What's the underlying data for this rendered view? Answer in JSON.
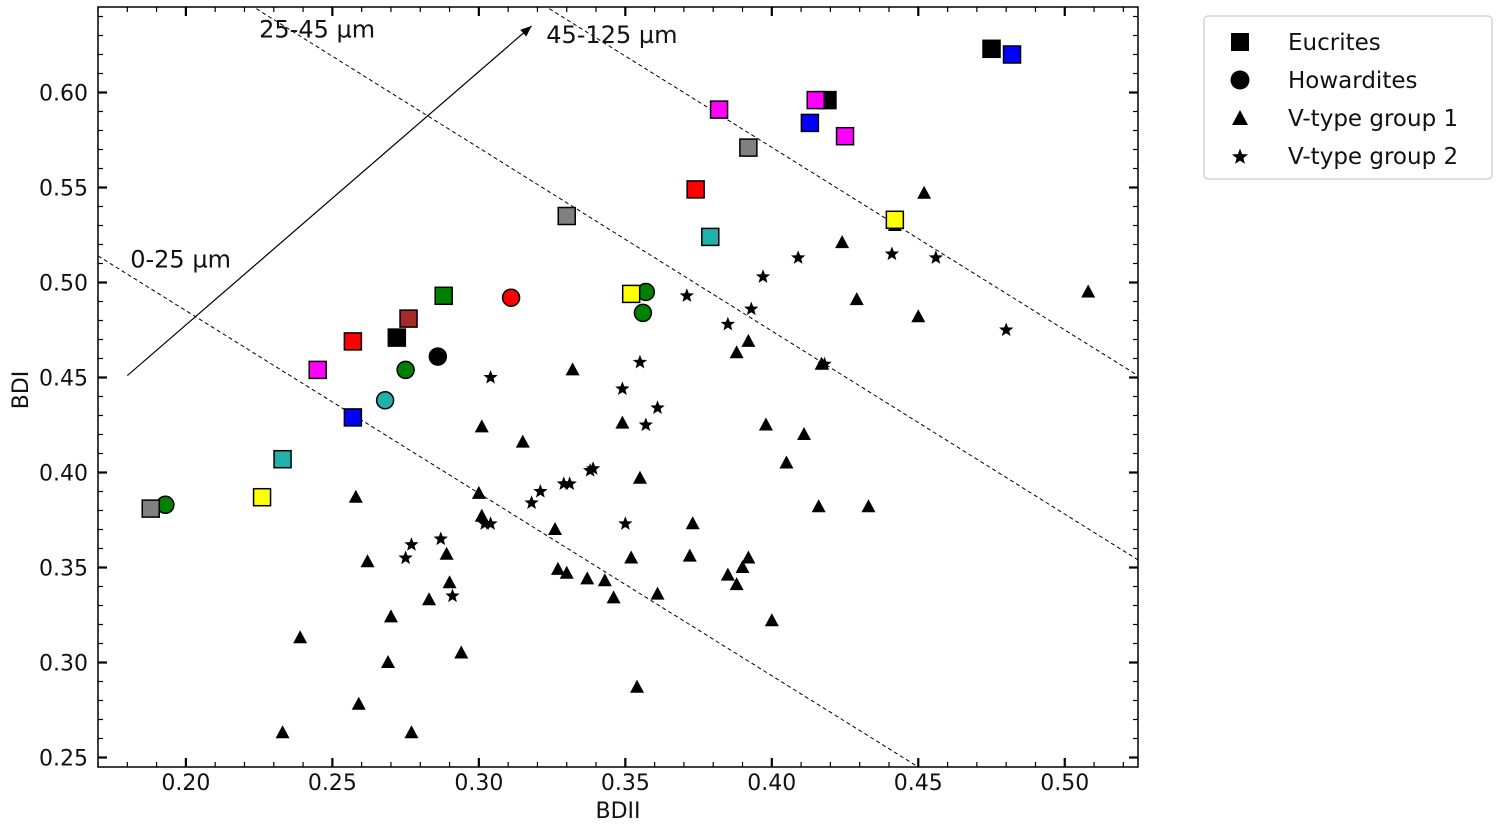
{
  "chart_data": {
    "type": "scatter",
    "title": "",
    "xlabel": "BDII",
    "ylabel": "BDI",
    "xlim": [
      0.17,
      0.525
    ],
    "ylim": [
      0.245,
      0.645
    ],
    "xticks": [
      "0.20",
      "0.25",
      "0.30",
      "0.35",
      "0.40",
      "0.45",
      "0.50"
    ],
    "yticks": [
      "0.25",
      "0.30",
      "0.35",
      "0.40",
      "0.45",
      "0.50",
      "0.55",
      "0.60"
    ],
    "grid": false,
    "legend_position": "outside-top-right",
    "legend": [
      {
        "label": "Eucrites",
        "marker": "square"
      },
      {
        "label": "Howardites",
        "marker": "circle"
      },
      {
        "label": "V-type group 1",
        "marker": "triangle"
      },
      {
        "label": "V-type group 2",
        "marker": "star"
      }
    ],
    "annotations": [
      {
        "text": "0-25 µm",
        "x": 0.181,
        "y": 0.508
      },
      {
        "text": "25-45 µm",
        "x": 0.225,
        "y": 0.629
      },
      {
        "text": "45-125 µm",
        "x": 0.323,
        "y": 0.626
      }
    ],
    "arrow": {
      "from": [
        0.18,
        0.451
      ],
      "to": [
        0.318,
        0.635
      ]
    },
    "boundary_lines": [
      {
        "x1": 0.17,
        "y1": 0.514,
        "x2": 0.45,
        "y2": 0.245
      },
      {
        "x1": 0.22,
        "y1": 0.648,
        "x2": 0.525,
        "y2": 0.354
      },
      {
        "x1": 0.32,
        "y1": 0.648,
        "x2": 0.525,
        "y2": 0.451
      }
    ],
    "eucrites": [
      {
        "x": 0.188,
        "y": 0.381,
        "color": "#808080"
      },
      {
        "x": 0.226,
        "y": 0.387,
        "color": "#ffff00"
      },
      {
        "x": 0.233,
        "y": 0.407,
        "color": "#20b2aa"
      },
      {
        "x": 0.245,
        "y": 0.454,
        "color": "#ff00ff"
      },
      {
        "x": 0.257,
        "y": 0.469,
        "color": "#ff0000"
      },
      {
        "x": 0.257,
        "y": 0.429,
        "color": "#0000ff"
      },
      {
        "x": 0.272,
        "y": 0.471,
        "color": "#000000"
      },
      {
        "x": 0.276,
        "y": 0.481,
        "color": "#a52a2a"
      },
      {
        "x": 0.288,
        "y": 0.493,
        "color": "#008000"
      },
      {
        "x": 0.33,
        "y": 0.535,
        "color": "#808080"
      },
      {
        "x": 0.352,
        "y": 0.494,
        "color": "#ffff00"
      },
      {
        "x": 0.374,
        "y": 0.549,
        "color": "#ff0000"
      },
      {
        "x": 0.379,
        "y": 0.524,
        "color": "#20b2aa"
      },
      {
        "x": 0.382,
        "y": 0.591,
        "color": "#ff00ff"
      },
      {
        "x": 0.392,
        "y": 0.571,
        "color": "#808080"
      },
      {
        "x": 0.413,
        "y": 0.584,
        "color": "#0000ff"
      },
      {
        "x": 0.419,
        "y": 0.596,
        "color": "#000000"
      },
      {
        "x": 0.415,
        "y": 0.596,
        "color": "#ff00ff"
      },
      {
        "x": 0.425,
        "y": 0.577,
        "color": "#ff00ff"
      },
      {
        "x": 0.442,
        "y": 0.533,
        "color": "#ffff00"
      },
      {
        "x": 0.475,
        "y": 0.623,
        "color": "#000000"
      },
      {
        "x": 0.482,
        "y": 0.62,
        "color": "#0000ff"
      }
    ],
    "howardites": [
      {
        "x": 0.193,
        "y": 0.383,
        "color": "#008000"
      },
      {
        "x": 0.268,
        "y": 0.438,
        "color": "#20b2aa"
      },
      {
        "x": 0.275,
        "y": 0.454,
        "color": "#008000"
      },
      {
        "x": 0.286,
        "y": 0.461,
        "color": "#000000"
      },
      {
        "x": 0.311,
        "y": 0.492,
        "color": "#ff0000"
      },
      {
        "x": 0.357,
        "y": 0.495,
        "color": "#008000"
      },
      {
        "x": 0.356,
        "y": 0.484,
        "color": "#008000"
      }
    ],
    "vtype_group1": [
      {
        "x": 0.233,
        "y": 0.263
      },
      {
        "x": 0.239,
        "y": 0.313
      },
      {
        "x": 0.258,
        "y": 0.387
      },
      {
        "x": 0.259,
        "y": 0.278
      },
      {
        "x": 0.262,
        "y": 0.353
      },
      {
        "x": 0.269,
        "y": 0.3
      },
      {
        "x": 0.27,
        "y": 0.324
      },
      {
        "x": 0.277,
        "y": 0.263
      },
      {
        "x": 0.283,
        "y": 0.333
      },
      {
        "x": 0.289,
        "y": 0.357
      },
      {
        "x": 0.29,
        "y": 0.342
      },
      {
        "x": 0.294,
        "y": 0.305
      },
      {
        "x": 0.3,
        "y": 0.389
      },
      {
        "x": 0.301,
        "y": 0.377
      },
      {
        "x": 0.301,
        "y": 0.424
      },
      {
        "x": 0.315,
        "y": 0.416
      },
      {
        "x": 0.326,
        "y": 0.37
      },
      {
        "x": 0.327,
        "y": 0.349
      },
      {
        "x": 0.33,
        "y": 0.347
      },
      {
        "x": 0.332,
        "y": 0.454
      },
      {
        "x": 0.337,
        "y": 0.344
      },
      {
        "x": 0.343,
        "y": 0.343
      },
      {
        "x": 0.346,
        "y": 0.334
      },
      {
        "x": 0.349,
        "y": 0.426
      },
      {
        "x": 0.352,
        "y": 0.355
      },
      {
        "x": 0.355,
        "y": 0.397
      },
      {
        "x": 0.354,
        "y": 0.287
      },
      {
        "x": 0.361,
        "y": 0.336
      },
      {
        "x": 0.372,
        "y": 0.356
      },
      {
        "x": 0.373,
        "y": 0.373
      },
      {
        "x": 0.385,
        "y": 0.346
      },
      {
        "x": 0.388,
        "y": 0.463
      },
      {
        "x": 0.388,
        "y": 0.341
      },
      {
        "x": 0.39,
        "y": 0.35
      },
      {
        "x": 0.392,
        "y": 0.469
      },
      {
        "x": 0.392,
        "y": 0.355
      },
      {
        "x": 0.398,
        "y": 0.425
      },
      {
        "x": 0.4,
        "y": 0.322
      },
      {
        "x": 0.405,
        "y": 0.405
      },
      {
        "x": 0.411,
        "y": 0.42
      },
      {
        "x": 0.416,
        "y": 0.382
      },
      {
        "x": 0.417,
        "y": 0.457
      },
      {
        "x": 0.424,
        "y": 0.521
      },
      {
        "x": 0.429,
        "y": 0.491
      },
      {
        "x": 0.433,
        "y": 0.382
      },
      {
        "x": 0.442,
        "y": 0.53
      },
      {
        "x": 0.45,
        "y": 0.482
      },
      {
        "x": 0.452,
        "y": 0.547
      },
      {
        "x": 0.508,
        "y": 0.495
      }
    ],
    "vtype_group2": [
      {
        "x": 0.277,
        "y": 0.362
      },
      {
        "x": 0.275,
        "y": 0.355
      },
      {
        "x": 0.287,
        "y": 0.365
      },
      {
        "x": 0.291,
        "y": 0.335
      },
      {
        "x": 0.302,
        "y": 0.373
      },
      {
        "x": 0.304,
        "y": 0.373
      },
      {
        "x": 0.304,
        "y": 0.45
      },
      {
        "x": 0.318,
        "y": 0.384
      },
      {
        "x": 0.321,
        "y": 0.39
      },
      {
        "x": 0.329,
        "y": 0.394
      },
      {
        "x": 0.331,
        "y": 0.394
      },
      {
        "x": 0.338,
        "y": 0.401
      },
      {
        "x": 0.339,
        "y": 0.402
      },
      {
        "x": 0.349,
        "y": 0.444
      },
      {
        "x": 0.35,
        "y": 0.373
      },
      {
        "x": 0.355,
        "y": 0.458
      },
      {
        "x": 0.357,
        "y": 0.425
      },
      {
        "x": 0.361,
        "y": 0.434
      },
      {
        "x": 0.371,
        "y": 0.493
      },
      {
        "x": 0.385,
        "y": 0.478
      },
      {
        "x": 0.393,
        "y": 0.486
      },
      {
        "x": 0.397,
        "y": 0.503
      },
      {
        "x": 0.409,
        "y": 0.513
      },
      {
        "x": 0.418,
        "y": 0.457
      },
      {
        "x": 0.441,
        "y": 0.515
      },
      {
        "x": 0.456,
        "y": 0.513
      },
      {
        "x": 0.48,
        "y": 0.475
      }
    ]
  }
}
